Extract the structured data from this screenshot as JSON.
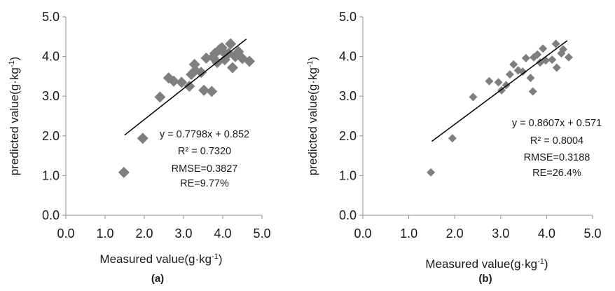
{
  "chart_data": [
    {
      "type": "scatter",
      "panel_label": "(a)",
      "xlabel": "Measured value(g·kg",
      "ylabel": "predicted value(g·kg",
      "unit_superscript": "-1",
      "unit_close": ")",
      "xlim": [
        0,
        5
      ],
      "ylim": [
        0,
        5
      ],
      "x_ticks": [
        "0.0",
        "1.0",
        "2.0",
        "3.0",
        "4.0",
        "5.0"
      ],
      "y_ticks": [
        "0.0",
        "1.0",
        "2.0",
        "3.0",
        "4.0",
        "5.0"
      ],
      "grid": false,
      "legend": "none",
      "marker": "diamond",
      "marker_color": "#7f7f7f",
      "trendline": {
        "slope": 0.7798,
        "intercept": 0.852,
        "x_start": 1.5,
        "x_end": 4.6,
        "color": "#000000"
      },
      "annotations": [
        "y = 0.7798x + 0.852",
        "R² = 0.7320",
        "RMSE=0.3827",
        "RE=9.77%"
      ],
      "points": [
        [
          1.48,
          1.08
        ],
        [
          1.96,
          1.94
        ],
        [
          2.4,
          2.98
        ],
        [
          2.62,
          3.46
        ],
        [
          2.75,
          3.38
        ],
        [
          2.95,
          3.35
        ],
        [
          3.15,
          3.25
        ],
        [
          3.2,
          3.55
        ],
        [
          3.28,
          3.8
        ],
        [
          3.3,
          3.65
        ],
        [
          3.45,
          3.6
        ],
        [
          3.52,
          3.15
        ],
        [
          3.58,
          3.96
        ],
        [
          3.72,
          3.12
        ],
        [
          3.75,
          3.98
        ],
        [
          3.8,
          4.08
        ],
        [
          3.86,
          3.85
        ],
        [
          3.92,
          4.18
        ],
        [
          3.98,
          4.22
        ],
        [
          4.05,
          3.92
        ],
        [
          4.08,
          4.05
        ],
        [
          4.15,
          4.08
        ],
        [
          4.2,
          4.32
        ],
        [
          4.25,
          3.72
        ],
        [
          4.32,
          4.0
        ],
        [
          4.4,
          4.12
        ],
        [
          4.5,
          3.95
        ],
        [
          4.68,
          3.88
        ]
      ]
    },
    {
      "type": "scatter",
      "panel_label": "(b)",
      "xlabel": "Measured  value(g·kg",
      "ylabel": "predicted value(g·kg",
      "unit_superscript": "-1",
      "unit_close": ")",
      "xlim": [
        0,
        5
      ],
      "ylim": [
        0,
        5
      ],
      "x_ticks": [
        "0.0",
        "1.0",
        "2.0",
        "3.0",
        "4.0",
        "5.0"
      ],
      "y_ticks": [
        "0.0",
        "1.0",
        "2.0",
        "3.0",
        "4.0",
        "5.0"
      ],
      "grid": false,
      "legend": "none",
      "marker": "diamond",
      "marker_color": "#7f7f7f",
      "trendline": {
        "slope": 0.8607,
        "intercept": 0.571,
        "x_start": 1.5,
        "x_end": 4.45,
        "color": "#000000"
      },
      "annotations": [
        "y = 0.8607x + 0.571",
        "R² = 0.8004",
        "RMSE=0.3188",
        "RE=26.4%"
      ],
      "points": [
        [
          1.48,
          1.08
        ],
        [
          1.95,
          1.94
        ],
        [
          2.4,
          2.98
        ],
        [
          2.75,
          3.38
        ],
        [
          2.95,
          3.35
        ],
        [
          3.02,
          3.15
        ],
        [
          3.12,
          3.28
        ],
        [
          3.2,
          3.55
        ],
        [
          3.28,
          3.8
        ],
        [
          3.38,
          3.65
        ],
        [
          3.48,
          3.62
        ],
        [
          3.55,
          3.96
        ],
        [
          3.65,
          3.46
        ],
        [
          3.7,
          3.12
        ],
        [
          3.72,
          3.98
        ],
        [
          3.8,
          4.05
        ],
        [
          3.86,
          3.85
        ],
        [
          3.92,
          4.2
        ],
        [
          3.98,
          3.9
        ],
        [
          4.12,
          3.92
        ],
        [
          4.2,
          4.32
        ],
        [
          4.22,
          3.72
        ],
        [
          4.32,
          4.08
        ],
        [
          4.36,
          4.18
        ],
        [
          4.48,
          3.98
        ]
      ]
    }
  ]
}
